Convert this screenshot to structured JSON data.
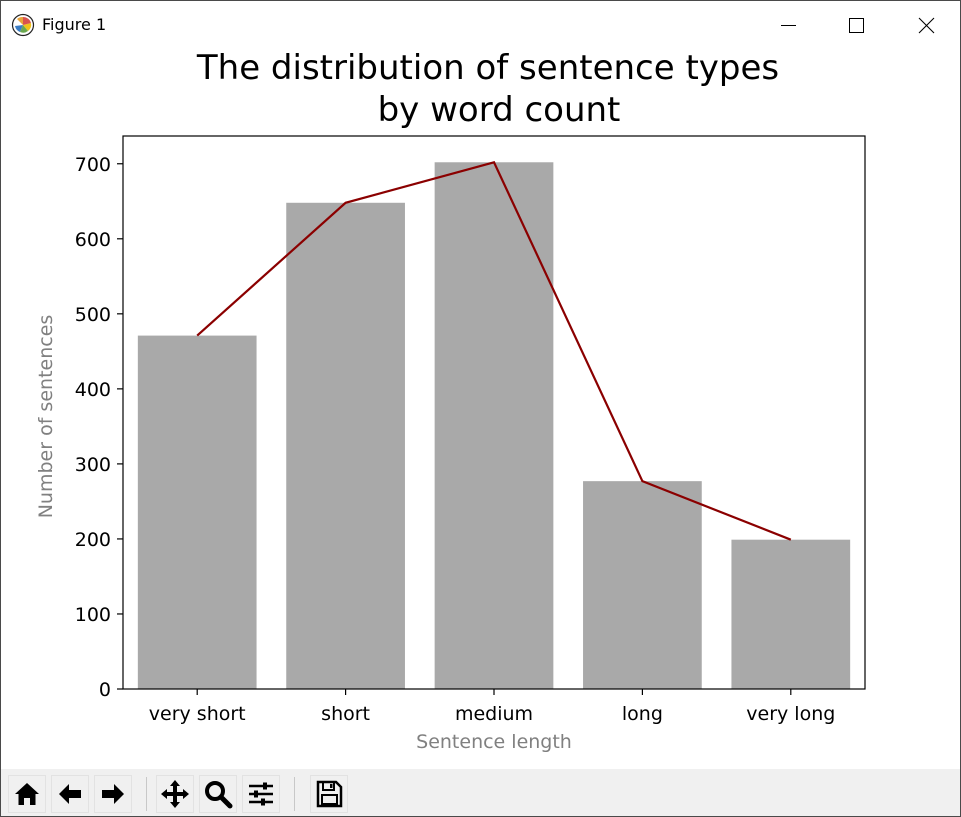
{
  "window": {
    "title": "Figure 1",
    "controls": [
      "minimize-icon",
      "maximize-icon",
      "close-icon"
    ]
  },
  "toolbar": {
    "buttons": [
      "home-icon",
      "back-icon",
      "forward-icon",
      "pan-icon",
      "zoom-icon",
      "configure-subplots-icon",
      "save-icon"
    ]
  },
  "chart_data": {
    "type": "bar",
    "title_line1": "The distribution of sentence types",
    "title_line2": "by word count",
    "xlabel": "Sentence length",
    "ylabel": "Number of sentences",
    "categories": [
      "very short",
      "short",
      "medium",
      "long",
      "very long"
    ],
    "values": [
      471,
      648,
      702,
      277,
      199
    ],
    "line_values": [
      471,
      648,
      702,
      277,
      199
    ],
    "ylim": [
      0,
      737
    ],
    "yticks": [
      0,
      100,
      200,
      300,
      400,
      500,
      600,
      700
    ],
    "bar_color": "#a9a9a9",
    "line_color": "#8b0000",
    "label_color": "#808080",
    "grid": false,
    "legend": "none"
  }
}
